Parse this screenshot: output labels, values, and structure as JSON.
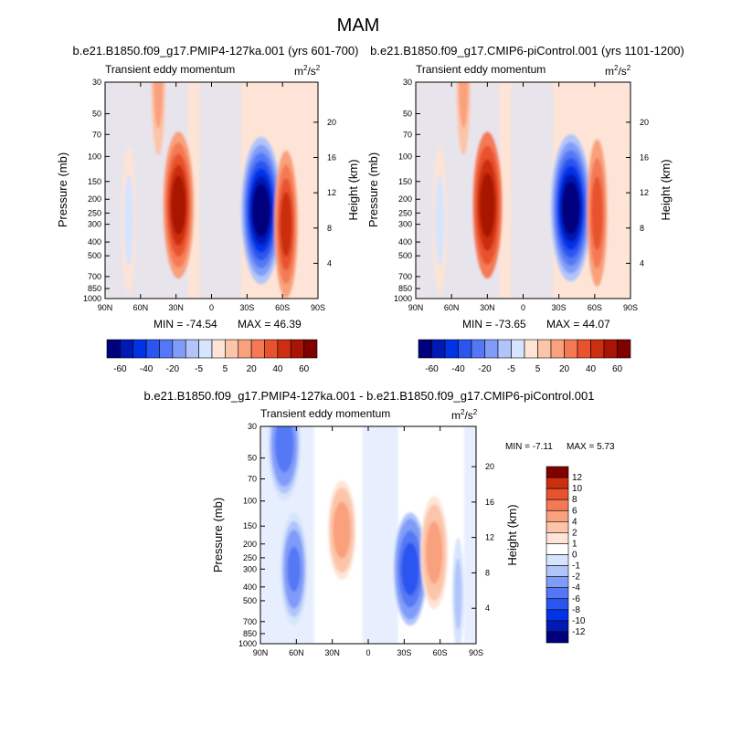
{
  "figure": {
    "season_title": "MAM",
    "variable_label": "Transient eddy momentum",
    "units_base": "m",
    "units_sup1": "2",
    "units_mid": "/s",
    "units_sup2": "2"
  },
  "chart_data": [
    {
      "type": "heatmap",
      "title": "b.e21.B1850.f09_g17.PMIP4-127ka.001 (yrs 601-700)",
      "subtitle": "Transient eddy momentum",
      "xlabel": "",
      "ylabel": "Pressure (mb)",
      "ylabel_right": "Height (km)",
      "x_ticks": [
        "90N",
        "60N",
        "30N",
        "0",
        "30S",
        "60S",
        "90S"
      ],
      "y_ticks": [
        30,
        50,
        70,
        100,
        150,
        200,
        250,
        300,
        400,
        500,
        700,
        850,
        1000
      ],
      "y_right_ticks": [
        20,
        16,
        12,
        8,
        4
      ],
      "min_label": "MIN = -74.54",
      "max_label": "MAX = 46.39",
      "min": -74.54,
      "max": 46.39,
      "features": [
        {
          "lat": 28,
          "p": 220,
          "value": 46
        },
        {
          "lat": -42,
          "p": 240,
          "value": -74.5
        },
        {
          "lat": -63,
          "p": 300,
          "value": 35
        },
        {
          "lat": 45,
          "p": 30,
          "value": 10
        },
        {
          "lat": 70,
          "p": 280,
          "value": -8
        }
      ]
    },
    {
      "type": "heatmap",
      "title": "b.e21.B1850.f09_g17.CMIP6-piControl.001 (yrs 1101-1200)",
      "subtitle": "Transient eddy momentum",
      "xlabel": "",
      "ylabel": "Pressure (mb)",
      "ylabel_right": "Height (km)",
      "x_ticks": [
        "90N",
        "60N",
        "30N",
        "0",
        "30S",
        "60S",
        "90S"
      ],
      "y_ticks": [
        30,
        50,
        70,
        100,
        150,
        200,
        250,
        300,
        400,
        500,
        700,
        850,
        1000
      ],
      "y_right_ticks": [
        20,
        16,
        12,
        8,
        4
      ],
      "min_label": "MIN = -73.65",
      "max_label": "MAX = 44.07",
      "min": -73.65,
      "max": 44.07,
      "features": [
        {
          "lat": 30,
          "p": 220,
          "value": 44
        },
        {
          "lat": -40,
          "p": 230,
          "value": -73.6
        },
        {
          "lat": -62,
          "p": 250,
          "value": 30
        },
        {
          "lat": 50,
          "p": 30,
          "value": 10
        },
        {
          "lat": 70,
          "p": 280,
          "value": -8
        }
      ]
    },
    {
      "type": "heatmap",
      "title": "b.e21.B1850.f09_g17.PMIP4-127ka.001 - b.e21.B1850.f09_g17.CMIP6-piControl.001",
      "subtitle": "Transient eddy momentum",
      "xlabel": "",
      "ylabel": "Pressure (mb)",
      "ylabel_right": "Height (km)",
      "x_ticks": [
        "90N",
        "60N",
        "30N",
        "0",
        "30S",
        "60S",
        "90S"
      ],
      "y_ticks": [
        30,
        50,
        70,
        100,
        150,
        200,
        250,
        300,
        400,
        500,
        700,
        850,
        1000
      ],
      "y_right_ticks": [
        20,
        16,
        12,
        8,
        4
      ],
      "min_label": "MIN =  -7.11",
      "max_label": "MAX =   5.73",
      "min": -7.11,
      "max": 5.73,
      "features": [
        {
          "lat": 70,
          "p": 40,
          "value": -6
        },
        {
          "lat": 62,
          "p": 300,
          "value": -5
        },
        {
          "lat": 22,
          "p": 160,
          "value": 5.7
        },
        {
          "lat": -35,
          "p": 300,
          "value": -7.1
        },
        {
          "lat": -55,
          "p": 230,
          "value": 5
        },
        {
          "lat": -75,
          "p": 450,
          "value": -1.5
        }
      ]
    }
  ],
  "colorbar_top": {
    "colors": [
      "#00007f",
      "#0019b4",
      "#0033e6",
      "#2a55f0",
      "#5478f5",
      "#809cf8",
      "#b1c5fb",
      "#d7e4fd",
      "#fde4d6",
      "#fcc4a8",
      "#f9a07c",
      "#f47a55",
      "#e8522f",
      "#cc2e10",
      "#a91405",
      "#800000"
    ],
    "tick_labels": [
      "-60",
      "-40",
      "-20",
      "-5",
      "5",
      "20",
      "40",
      "60"
    ]
  },
  "colorbar_diff": {
    "colors": [
      "#800000",
      "#cc2e10",
      "#e8522f",
      "#f47a55",
      "#f9a07c",
      "#fcc4a8",
      "#fde4d6",
      "#ffffff",
      "#d7e4fd",
      "#b1c5fb",
      "#809cf8",
      "#5478f5",
      "#2a55f0",
      "#0033e6",
      "#0019b4",
      "#00007f"
    ],
    "tick_labels": [
      "12",
      "10",
      "8",
      "6",
      "4",
      "2",
      "1",
      "0",
      "-1",
      "-2",
      "-4",
      "-6",
      "-8",
      "-10",
      "-12"
    ]
  }
}
